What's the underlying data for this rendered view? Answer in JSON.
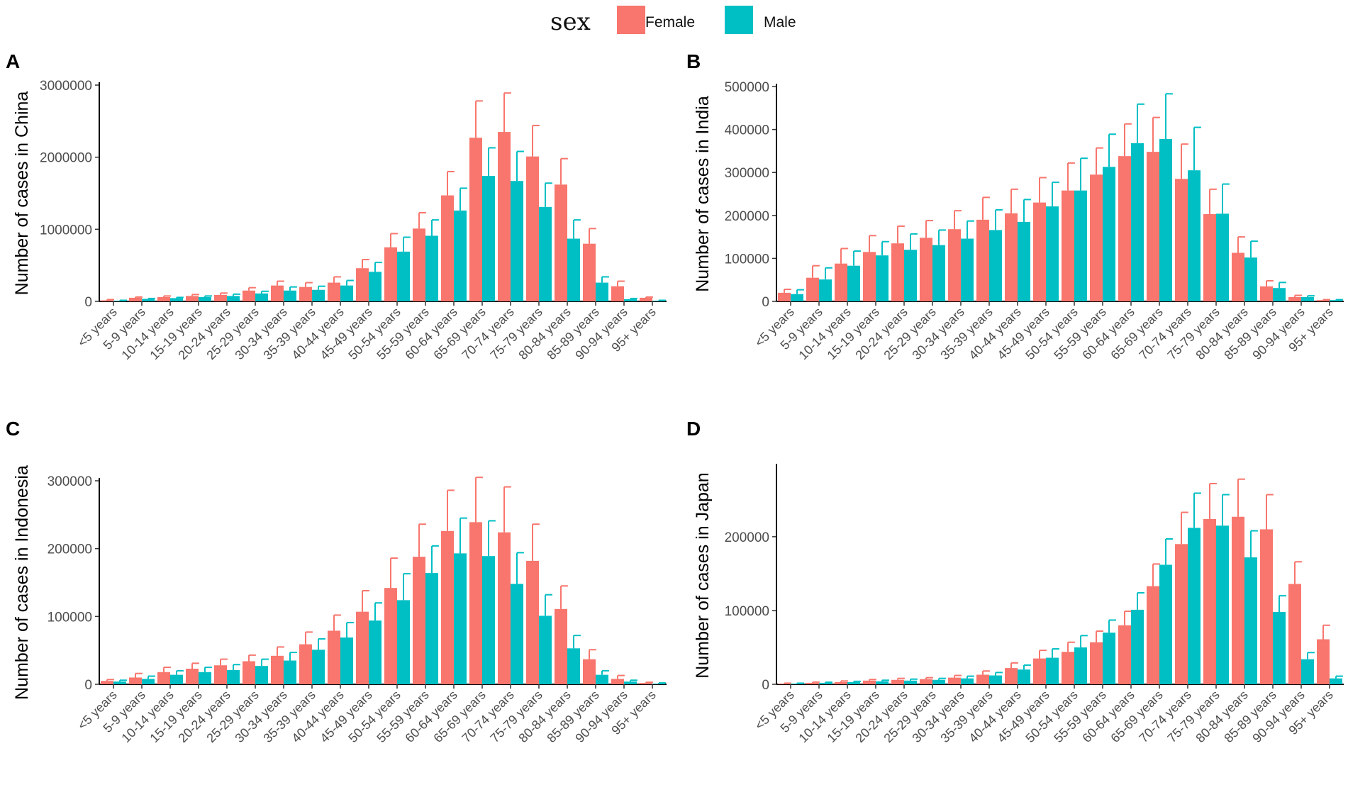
{
  "legend": {
    "title": "sex",
    "items": [
      {
        "label": "Female",
        "color": "#F8766D"
      },
      {
        "label": "Male",
        "color": "#00BFC4"
      }
    ]
  },
  "chart_data": [
    {
      "panel": "A",
      "type": "bar",
      "ylabel": "Number of cases in China",
      "ylim": [
        0,
        3000000
      ],
      "yticks": [
        0,
        1000000,
        2000000,
        3000000
      ],
      "ytick_labels": [
        "0",
        "1000000",
        "2000000",
        "3000000"
      ],
      "categories": [
        "<5 years",
        "5-9 years",
        "10-14 years",
        "15-19 years",
        "20-24 years",
        "25-29 years",
        "30-34 years",
        "35-39 years",
        "40-44 years",
        "45-49 years",
        "50-54 years",
        "55-59 years",
        "60-64 years",
        "65-69 years",
        "70-74 years",
        "75-79 years",
        "80-84 years",
        "85-89 years",
        "90-94 years",
        "95+ years"
      ],
      "series": [
        {
          "name": "Female",
          "values": [
            15000,
            50000,
            60000,
            75000,
            90000,
            150000,
            220000,
            200000,
            260000,
            460000,
            750000,
            1010000,
            1470000,
            2270000,
            2350000,
            2010000,
            1620000,
            800000,
            210000,
            50000
          ],
          "error_upper": [
            25000,
            60000,
            75000,
            95000,
            115000,
            190000,
            280000,
            260000,
            340000,
            580000,
            940000,
            1230000,
            1800000,
            2780000,
            2890000,
            2440000,
            1980000,
            1010000,
            280000,
            60000
          ]
        },
        {
          "name": "Male",
          "values": [
            10000,
            35000,
            45000,
            60000,
            75000,
            110000,
            150000,
            160000,
            220000,
            410000,
            690000,
            910000,
            1260000,
            1740000,
            1670000,
            1310000,
            870000,
            260000,
            30000,
            10000
          ],
          "error_upper": [
            15000,
            40000,
            55000,
            75000,
            100000,
            140000,
            200000,
            210000,
            290000,
            540000,
            890000,
            1130000,
            1570000,
            2130000,
            2080000,
            1640000,
            1130000,
            340000,
            40000,
            15000
          ]
        }
      ]
    },
    {
      "panel": "B",
      "type": "bar",
      "ylabel": "Number of cases in India",
      "ylim": [
        0,
        500000
      ],
      "yticks": [
        0,
        100000,
        200000,
        300000,
        400000,
        500000
      ],
      "ytick_labels": [
        "0",
        "100000",
        "200000",
        "300000",
        "400000",
        "500000"
      ],
      "categories": [
        "<5 years",
        "5-9 years",
        "10-14 years",
        "15-19 years",
        "20-24 years",
        "25-29 years",
        "30-34 years",
        "35-39 years",
        "40-44 years",
        "45-49 years",
        "50-54 years",
        "55-59 years",
        "60-64 years",
        "65-69 years",
        "70-74 years",
        "75-79 years",
        "80-84 years",
        "85-89 years",
        "90-94 years",
        "95+ years"
      ],
      "series": [
        {
          "name": "Female",
          "values": [
            20000,
            55000,
            88000,
            115000,
            135000,
            148000,
            168000,
            190000,
            205000,
            230000,
            258000,
            295000,
            338000,
            348000,
            285000,
            203000,
            113000,
            35000,
            10000,
            3000
          ],
          "error_upper": [
            28000,
            83000,
            123000,
            153000,
            175000,
            188000,
            211000,
            242000,
            261000,
            288000,
            322000,
            357000,
            413000,
            428000,
            366000,
            261000,
            150000,
            48000,
            14000,
            4000
          ]
        },
        {
          "name": "Male",
          "values": [
            17000,
            51000,
            83000,
            107000,
            120000,
            131000,
            146000,
            166000,
            185000,
            221000,
            258000,
            313000,
            368000,
            378000,
            305000,
            204000,
            102000,
            31000,
            10000,
            3000
          ],
          "error_upper": [
            27000,
            78000,
            117000,
            139000,
            157000,
            166000,
            187000,
            213000,
            237000,
            277000,
            333000,
            389000,
            459000,
            483000,
            405000,
            273000,
            140000,
            44000,
            13000,
            4000
          ]
        }
      ]
    },
    {
      "panel": "C",
      "type": "bar",
      "ylabel": "Number of cases in Indonesia",
      "ylim": [
        0,
        300000
      ],
      "yticks": [
        0,
        100000,
        200000,
        300000
      ],
      "ytick_labels": [
        "0",
        "100000",
        "200000",
        "300000"
      ],
      "categories": [
        "<5 years",
        "5-9 years",
        "10-14 years",
        "15-19 years",
        "20-24 years",
        "25-29 years",
        "30-34 years",
        "35-39 years",
        "40-44 years",
        "45-49 years",
        "50-54 years",
        "55-59 years",
        "60-64 years",
        "65-69 years",
        "70-74 years",
        "75-79 years",
        "80-84 years",
        "85-89 years",
        "90-94 years",
        "95+ years"
      ],
      "series": [
        {
          "name": "Female",
          "values": [
            5000,
            10000,
            18000,
            23000,
            28000,
            34000,
            42000,
            59000,
            79000,
            107000,
            142000,
            188000,
            226000,
            239000,
            224000,
            182000,
            111000,
            37000,
            8000,
            2000
          ],
          "error_upper": [
            7000,
            16000,
            25000,
            31000,
            37000,
            43000,
            55000,
            77000,
            102000,
            138000,
            186000,
            236000,
            286000,
            305000,
            291000,
            236000,
            145000,
            51000,
            13000,
            3000
          ]
        },
        {
          "name": "Male",
          "values": [
            4000,
            8000,
            14000,
            18000,
            21000,
            27000,
            35000,
            51000,
            69000,
            94000,
            124000,
            164000,
            193000,
            189000,
            148000,
            101000,
            53000,
            14000,
            4000,
            1000
          ],
          "error_upper": [
            6000,
            12000,
            20000,
            25000,
            29000,
            37000,
            47000,
            67000,
            91000,
            120000,
            163000,
            204000,
            245000,
            241000,
            194000,
            132000,
            72000,
            20000,
            6000,
            2000
          ]
        }
      ]
    },
    {
      "panel": "D",
      "type": "bar",
      "ylabel": "Number of cases in Japan",
      "ylim": [
        0,
        295000
      ],
      "yticks": [
        0,
        100000,
        200000
      ],
      "ytick_labels": [
        "0",
        "100000",
        "200000"
      ],
      "categories": [
        "<5 years",
        "5-9 years",
        "10-14 years",
        "15-19 years",
        "20-24 years",
        "25-29 years",
        "30-34 years",
        "35-39 years",
        "40-44 years",
        "45-49 years",
        "50-54 years",
        "55-59 years",
        "60-64 years",
        "65-69 years",
        "70-74 years",
        "75-79 years",
        "80-84 years",
        "85-89 years",
        "90-94 years",
        "95+ years"
      ],
      "series": [
        {
          "name": "Female",
          "values": [
            1000,
            2000,
            3000,
            5000,
            6000,
            7000,
            9000,
            13000,
            22000,
            35000,
            44000,
            57000,
            80000,
            133000,
            190000,
            224000,
            227000,
            210000,
            136000,
            61000
          ],
          "error_upper": [
            1500,
            3000,
            4500,
            6500,
            8000,
            9000,
            12000,
            18000,
            29000,
            46000,
            57000,
            72000,
            99000,
            163000,
            233000,
            272000,
            278000,
            257000,
            166000,
            80000
          ]
        },
        {
          "name": "Male",
          "values": [
            1000,
            2000,
            3000,
            4000,
            5000,
            6000,
            8000,
            12000,
            20000,
            36000,
            50000,
            70000,
            101000,
            162000,
            212000,
            215000,
            172000,
            98000,
            34000,
            8000
          ],
          "error_upper": [
            1500,
            2800,
            4000,
            5500,
            7000,
            8000,
            11000,
            16000,
            26000,
            48000,
            66000,
            87000,
            124000,
            197000,
            259000,
            257000,
            208000,
            120000,
            43000,
            11000
          ]
        }
      ]
    }
  ]
}
